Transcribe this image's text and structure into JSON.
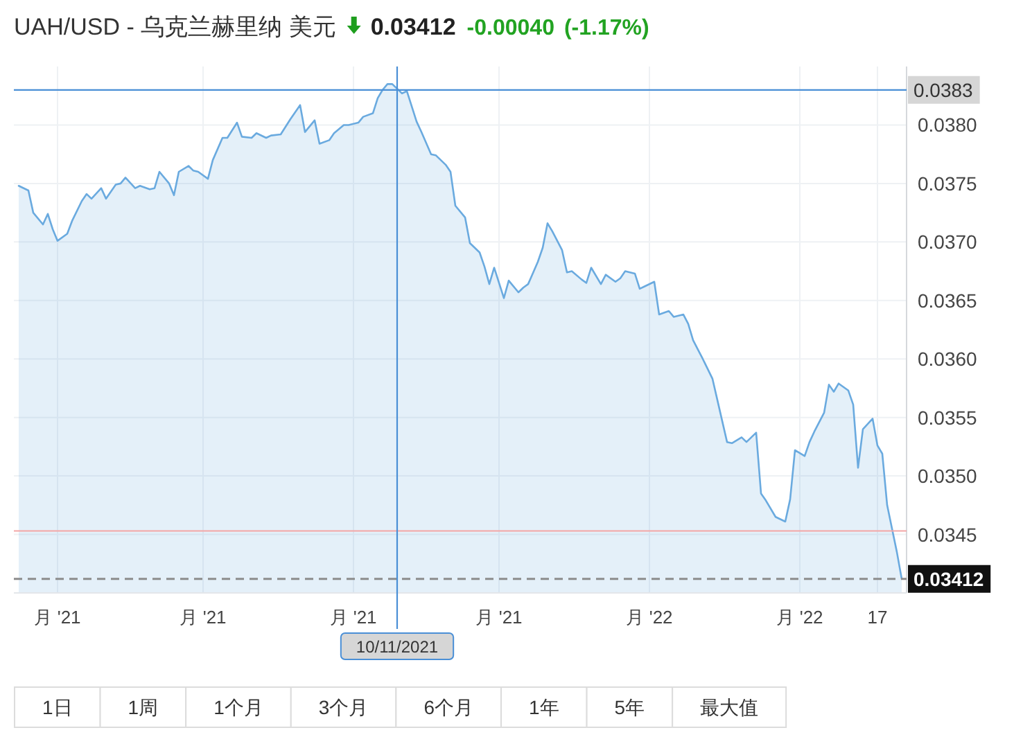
{
  "chart_data": {
    "type": "area",
    "title": "UAH/USD - 乌克兰赫里纳 美元",
    "x": [
      "2021-08-24",
      "2021-08-26",
      "2021-08-27",
      "2021-08-29",
      "2021-08-30",
      "2021-08-31",
      "2021-09-01",
      "2021-09-03",
      "2021-09-04",
      "2021-09-06",
      "2021-09-07",
      "2021-09-08",
      "2021-09-10",
      "2021-09-11",
      "2021-09-13",
      "2021-09-14",
      "2021-09-15",
      "2021-09-17",
      "2021-09-18",
      "2021-09-20",
      "2021-09-21",
      "2021-09-22",
      "2021-09-24",
      "2021-09-25",
      "2021-09-26",
      "2021-09-28",
      "2021-09-29",
      "2021-09-30",
      "2021-10-02",
      "2021-10-03",
      "2021-10-05",
      "2021-10-06",
      "2021-10-08",
      "2021-10-09",
      "2021-10-11",
      "2021-10-12",
      "2021-10-14",
      "2021-10-15",
      "2021-10-17",
      "2021-10-19",
      "2021-10-21",
      "2021-10-22",
      "2021-10-24",
      "2021-10-25",
      "2021-10-27",
      "2021-10-28",
      "2021-10-30",
      "2021-10-31",
      "2021-11-02",
      "2021-11-03",
      "2021-11-05",
      "2021-11-06",
      "2021-11-07",
      "2021-11-08",
      "2021-11-09",
      "2021-11-10",
      "2021-11-11",
      "2021-11-12",
      "2021-11-14",
      "2021-11-15",
      "2021-11-17",
      "2021-11-18",
      "2021-11-20",
      "2021-11-21",
      "2021-11-22",
      "2021-11-24",
      "2021-11-25",
      "2021-11-27",
      "2021-11-28",
      "2021-11-29",
      "2021-11-30",
      "2021-12-02",
      "2021-12-03",
      "2021-12-05",
      "2021-12-06",
      "2021-12-07",
      "2021-12-09",
      "2021-12-10",
      "2021-12-11",
      "2021-12-12",
      "2021-12-14",
      "2021-12-15",
      "2021-12-16",
      "2021-12-18",
      "2021-12-19",
      "2021-12-20",
      "2021-12-22",
      "2021-12-23",
      "2021-12-25",
      "2021-12-26",
      "2021-12-27",
      "2021-12-29",
      "2021-12-30",
      "2021-12-31",
      "2022-01-02",
      "2022-01-03",
      "2022-01-05",
      "2022-01-06",
      "2022-01-08",
      "2022-01-09",
      "2022-01-10",
      "2022-01-12",
      "2022-01-14",
      "2022-01-15",
      "2022-01-17",
      "2022-01-18",
      "2022-01-20",
      "2022-01-21",
      "2022-01-23",
      "2022-01-24",
      "2022-01-25",
      "2022-01-27",
      "2022-01-29",
      "2022-01-30",
      "2022-01-31",
      "2022-02-02",
      "2022-02-03",
      "2022-02-04",
      "2022-02-06",
      "2022-02-07",
      "2022-02-08",
      "2022-02-09",
      "2022-02-11",
      "2022-02-12",
      "2022-02-13",
      "2022-02-14",
      "2022-02-16",
      "2022-02-17",
      "2022-02-18",
      "2022-02-19",
      "2022-02-21",
      "2022-02-22"
    ],
    "values": [
      0.03748,
      0.03744,
      0.03725,
      0.03715,
      0.03724,
      0.03711,
      0.03701,
      0.03707,
      0.03718,
      0.03735,
      0.03741,
      0.03737,
      0.03746,
      0.03737,
      0.03749,
      0.0375,
      0.03755,
      0.03746,
      0.03748,
      0.03745,
      0.03746,
      0.0376,
      0.0375,
      0.0374,
      0.0376,
      0.03765,
      0.03761,
      0.0376,
      0.03754,
      0.0377,
      0.03789,
      0.03789,
      0.03802,
      0.0379,
      0.03789,
      0.03793,
      0.03789,
      0.03791,
      0.03792,
      0.03805,
      0.03817,
      0.03794,
      0.03804,
      0.03784,
      0.03787,
      0.03793,
      0.038,
      0.038,
      0.03802,
      0.03807,
      0.0381,
      0.03823,
      0.0383,
      0.03835,
      0.03835,
      0.03831,
      0.03827,
      0.03829,
      0.03803,
      0.03794,
      0.03775,
      0.03774,
      0.03766,
      0.0376,
      0.03731,
      0.03721,
      0.03699,
      0.03691,
      0.03679,
      0.03664,
      0.03678,
      0.03652,
      0.03667,
      0.03657,
      0.03661,
      0.03664,
      0.03683,
      0.03695,
      0.03716,
      0.03709,
      0.03693,
      0.03674,
      0.03675,
      0.03668,
      0.03665,
      0.03678,
      0.03664,
      0.03672,
      0.03666,
      0.03669,
      0.03675,
      0.03673,
      0.0366,
      0.03662,
      0.03666,
      0.03638,
      0.03641,
      0.03636,
      0.03638,
      0.0363,
      0.03616,
      0.036,
      0.03583,
      0.03565,
      0.03529,
      0.03528,
      0.03533,
      0.03529,
      0.03537,
      0.03485,
      0.03479,
      0.03465,
      0.03461,
      0.0348,
      0.03522,
      0.03517,
      0.03529,
      0.03538,
      0.03554,
      0.03578,
      0.03572,
      0.03579,
      0.03573,
      0.03561,
      0.03507,
      0.0354,
      0.03549,
      0.03526,
      0.03519,
      0.03475,
      0.03435,
      0.03412
    ],
    "color": "#6aaadf",
    "xlim": [
      "2021-08-23",
      "2022-02-23"
    ],
    "xticks": [
      {
        "value": "2021-09-01",
        "label": "月 '21"
      },
      {
        "value": "2021-10-01",
        "label": "月 '21"
      },
      {
        "value": "2021-11-01",
        "label": "月 '21"
      },
      {
        "value": "2021-12-01",
        "label": "月 '21"
      },
      {
        "value": "2022-01-01",
        "label": "月 '22"
      },
      {
        "value": "2022-02-01",
        "label": "月 '22"
      },
      {
        "value": "2022-02-17",
        "label": "17"
      }
    ],
    "ylim": [
      0.034,
      0.0385
    ],
    "yticks": [
      0.0345,
      {
        "value": 0.035,
        "label": "0.0350"
      },
      0.0355,
      {
        "value": 0.036,
        "label": "0.0360"
      },
      0.0365,
      {
        "value": 0.037,
        "label": "0.0370"
      },
      0.0375,
      {
        "value": 0.038,
        "label": "0.0380"
      }
    ],
    "grid": true,
    "ref_lines": [
      {
        "axis": "y",
        "value": 0.03453,
        "color": "#f3a6a6"
      },
      {
        "axis": "y",
        "value": 0.0383,
        "label": "0.0383",
        "color": "#4a8fd6"
      },
      {
        "axis": "x",
        "value": "2021-11-10",
        "label": "10/11/2021",
        "color": "#4a8fd6"
      },
      {
        "axis": "y",
        "value": 0.03412,
        "label": "0.03412",
        "color": "#8c8c8c",
        "line_style": "dashed"
      }
    ],
    "annotations": [
      "0.03412",
      "-0.00040",
      "(-1.17%)",
      "1日",
      "1周",
      "1个月",
      "3个月",
      "6个月",
      "1年",
      "5年",
      "最大值"
    ]
  }
}
